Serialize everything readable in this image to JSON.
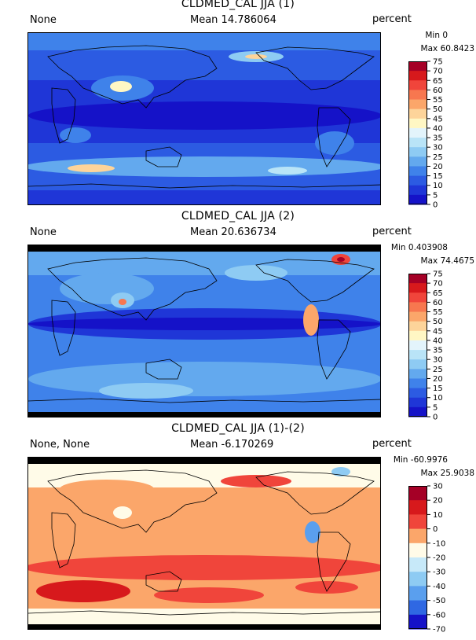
{
  "panels": [
    {
      "title": "CLDMED_CAL JJA (1)",
      "left_label": "None",
      "mean": "Mean 14.786064",
      "units": "percent",
      "min": "Min 0",
      "max": "Max 60.8423",
      "colorbar": {
        "ticks": [
          "75",
          "70",
          "65",
          "60",
          "55",
          "50",
          "45",
          "40",
          "35",
          "30",
          "25",
          "20",
          "15",
          "10",
          "5",
          "0"
        ],
        "colors": [
          "#a50026",
          "#d7191c",
          "#f0453b",
          "#f7774f",
          "#fba66a",
          "#fdd49a",
          "#fff7c4",
          "#e3f4fb",
          "#b9e4f7",
          "#8ecbf3",
          "#63a9ee",
          "#3f82ea",
          "#2c5be2",
          "#1f36d7",
          "#1512c8"
        ]
      }
    },
    {
      "title": "CLDMED_CAL JJA (2)",
      "left_label": "None",
      "mean": "Mean 20.636734",
      "units": "percent",
      "min": "Min 0.403908",
      "max": "Max 74.4675",
      "colorbar": {
        "ticks": [
          "75",
          "70",
          "65",
          "60",
          "55",
          "50",
          "45",
          "40",
          "35",
          "30",
          "25",
          "20",
          "15",
          "10",
          "5",
          "0"
        ],
        "colors": [
          "#a50026",
          "#d7191c",
          "#f0453b",
          "#f7774f",
          "#fba66a",
          "#fdd49a",
          "#fff7c4",
          "#e3f4fb",
          "#b9e4f7",
          "#8ecbf3",
          "#63a9ee",
          "#3f82ea",
          "#2c5be2",
          "#1f36d7",
          "#1512c8"
        ]
      }
    },
    {
      "title": "CLDMED_CAL JJA (1)-(2)",
      "left_label": "None, None",
      "mean": "Mean -6.170269",
      "units": "percent",
      "min": "Min -60.9976",
      "max": "Max 25.9038",
      "colorbar": {
        "ticks": [
          "30",
          "20",
          "10",
          "0",
          "-10",
          "-20",
          "-30",
          "-40",
          "-50",
          "-60",
          "-70"
        ],
        "colors": [
          "#a50026",
          "#d7191c",
          "#f0453b",
          "#fba66a",
          "#fffbe8",
          "#c7e9f9",
          "#8ecbf3",
          "#5a9fee",
          "#2f68e3",
          "#1512c8"
        ]
      }
    }
  ]
}
